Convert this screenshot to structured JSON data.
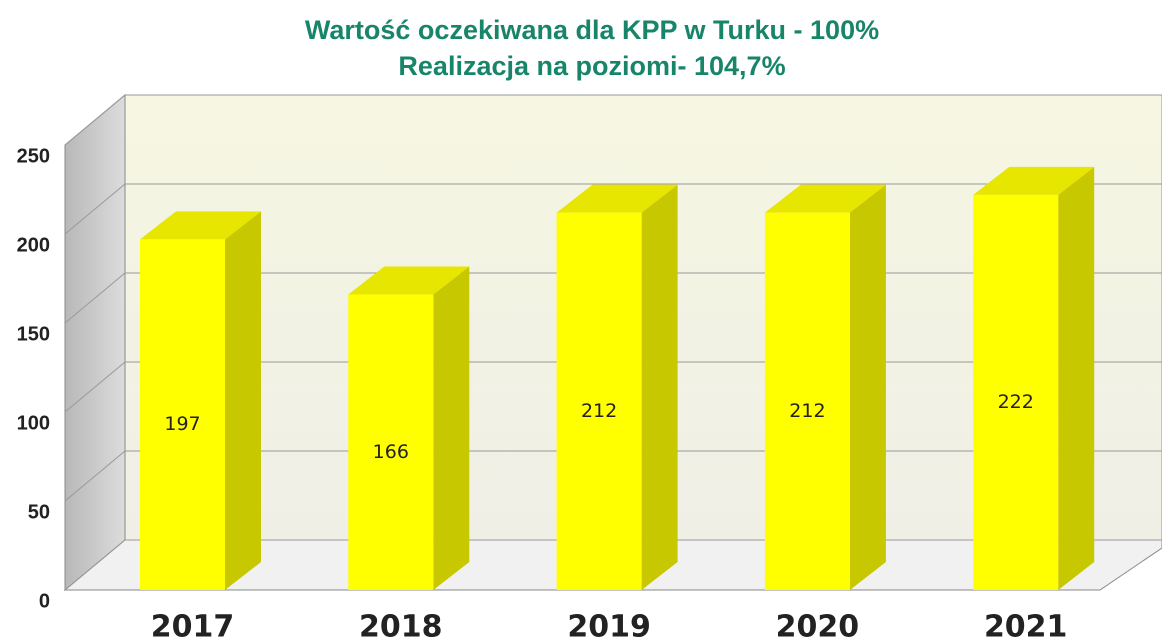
{
  "chart_data": {
    "type": "bar3d",
    "title": "Wartość oczekiwana dla KPP w Turku - 100%",
    "subtitle": "Realizacja na poziomi- 104,7%",
    "categories": [
      "2017",
      "2018",
      "2019",
      "2020",
      "2021"
    ],
    "values": [
      197,
      166,
      212,
      212,
      222
    ],
    "color": "#ffff00",
    "ylim": [
      0,
      250
    ],
    "yticks": [
      0,
      50,
      100,
      150,
      200,
      250
    ],
    "grid": true
  }
}
